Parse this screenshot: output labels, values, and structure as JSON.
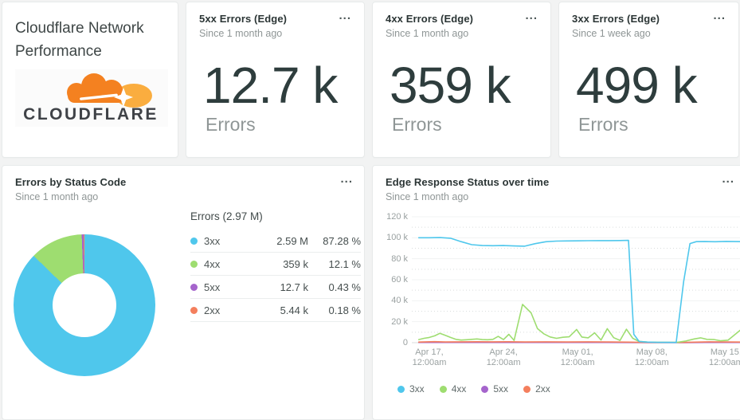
{
  "palette": {
    "c3xx": "#4fc7ec",
    "c4xx": "#9edd70",
    "c5xx": "#a564cc",
    "c2xx": "#f47f5d",
    "brand_orange": "#f48120",
    "brand_orange_light": "#faad3f"
  },
  "title_card": {
    "title": "Cloudflare Network Performance",
    "logo_wordmark": "CLOUDFLARE"
  },
  "menu_label": "...",
  "metric_cards": [
    {
      "title": "5xx Errors (Edge)",
      "subtitle": "Since 1 month ago",
      "value": "12.7 k",
      "unit": "Errors"
    },
    {
      "title": "4xx Errors (Edge)",
      "subtitle": "Since 1 month ago",
      "value": "359 k",
      "unit": "Errors"
    },
    {
      "title": "3xx Errors (Edge)",
      "subtitle": "Since 1 week ago",
      "value": "499 k",
      "unit": "Errors"
    }
  ],
  "donut_card": {
    "title": "Errors by Status Code",
    "subtitle": "Since 1 month ago"
  },
  "timeseries_card": {
    "title": "Edge Response Status over time",
    "subtitle": "Since 1 month ago"
  },
  "chart_data": [
    {
      "type": "pie",
      "title": "Errors by Status Code",
      "legend_title": "Errors (2.97 M)",
      "donut": true,
      "slices": [
        {
          "label": "3xx",
          "value_label": "2.59 M",
          "pct": 87.28,
          "pct_label": "87.28 %",
          "color": "#4fc7ec"
        },
        {
          "label": "4xx",
          "value_label": "359 k",
          "pct": 12.1,
          "pct_label": "12.1 %",
          "color": "#9edd70"
        },
        {
          "label": "5xx",
          "value_label": "12.7 k",
          "pct": 0.43,
          "pct_label": "0.43 %",
          "color": "#a564cc"
        },
        {
          "label": "2xx",
          "value_label": "5.44 k",
          "pct": 0.18,
          "pct_label": "0.18 %",
          "color": "#f47f5d"
        }
      ]
    },
    {
      "type": "line",
      "title": "Edge Response Status over time",
      "unit": "k (thousands of responses)",
      "x_unit": "days since Apr 16, 12:00am",
      "ylim_k": [
        0,
        120
      ],
      "grid": "horizontal, dotted minor every 10k",
      "y_ticks": [
        {
          "value": 120,
          "label": "120 k"
        },
        {
          "value": 100,
          "label": "100 k"
        },
        {
          "value": 80,
          "label": "80 k"
        },
        {
          "value": 60,
          "label": "60 k"
        },
        {
          "value": 40,
          "label": "40 k"
        },
        {
          "value": 20,
          "label": "20 k"
        },
        {
          "value": 0,
          "label": "0"
        }
      ],
      "x_ticks": [
        {
          "day": 1,
          "line1": "Apr 17,",
          "line2": "12:00am"
        },
        {
          "day": 8,
          "line1": "Apr 24,",
          "line2": "12:00am"
        },
        {
          "day": 15,
          "line1": "May 01,",
          "line2": "12:00am"
        },
        {
          "day": 22,
          "line1": "May 08,",
          "line2": "12:00am"
        },
        {
          "day": 29,
          "line1": "May 15,",
          "line2": "12:00am"
        }
      ],
      "legend": [
        {
          "label": "3xx",
          "color": "#4fc7ec"
        },
        {
          "label": "4xx",
          "color": "#9edd70"
        },
        {
          "label": "5xx",
          "color": "#a564cc"
        },
        {
          "label": "2xx",
          "color": "#f47f5d"
        }
      ],
      "series": [
        {
          "name": "5xx",
          "color": "#a564cc",
          "points": [
            [
              0,
              0.2
            ],
            [
              5,
              0.2
            ],
            [
              10,
              0.2
            ],
            [
              15,
              0.2
            ],
            [
              20,
              0.15
            ],
            [
              22,
              0.1
            ],
            [
              25,
              0.1
            ],
            [
              27,
              0.2
            ],
            [
              30.4,
              0.2
            ]
          ]
        },
        {
          "name": "2xx",
          "color": "#f47f5d",
          "points": [
            [
              0,
              0.6
            ],
            [
              1.5,
              1
            ],
            [
              2.5,
              0.7
            ],
            [
              4,
              0.8
            ],
            [
              5.5,
              0.9
            ],
            [
              7,
              0.8
            ],
            [
              8.5,
              0.9
            ],
            [
              10,
              0.7
            ],
            [
              12,
              0.8
            ],
            [
              14,
              0.7
            ],
            [
              16,
              0.8
            ],
            [
              18,
              0.7
            ],
            [
              20,
              0.5
            ],
            [
              21,
              0.3
            ],
            [
              23,
              0.25
            ],
            [
              24.5,
              0.25
            ],
            [
              26,
              0.5
            ],
            [
              27.5,
              0.8
            ],
            [
              29,
              0.7
            ],
            [
              30.4,
              0.6
            ]
          ]
        },
        {
          "name": "4xx",
          "color": "#9edd70",
          "points": [
            [
              0,
              3
            ],
            [
              0.5,
              4.2
            ],
            [
              1,
              5
            ],
            [
              1.5,
              6.5
            ],
            [
              2,
              9
            ],
            [
              2.5,
              7
            ],
            [
              3,
              5
            ],
            [
              3.5,
              3.2
            ],
            [
              4,
              2.5
            ],
            [
              4.5,
              2.8
            ],
            [
              5,
              3.2
            ],
            [
              5.5,
              3.6
            ],
            [
              6,
              3
            ],
            [
              6.5,
              2.8
            ],
            [
              7,
              3.2
            ],
            [
              7.5,
              6
            ],
            [
              8,
              3
            ],
            [
              8.5,
              8
            ],
            [
              9,
              2.2
            ],
            [
              9.8,
              36.5
            ],
            [
              10.6,
              28.5
            ],
            [
              11.2,
              13.5
            ],
            [
              11.8,
              8.5
            ],
            [
              12.4,
              5.5
            ],
            [
              13,
              4.2
            ],
            [
              13.6,
              5.2
            ],
            [
              14.2,
              5.6
            ],
            [
              14.9,
              12.6
            ],
            [
              15.4,
              5.4
            ],
            [
              16,
              4.6
            ],
            [
              16.6,
              9.4
            ],
            [
              17.2,
              2.6
            ],
            [
              17.8,
              13.4
            ],
            [
              18.4,
              4.8
            ],
            [
              19,
              2.2
            ],
            [
              19.6,
              12.8
            ],
            [
              20.2,
              4.2
            ],
            [
              20.8,
              1.2
            ],
            [
              21.6,
              0.6
            ],
            [
              22.6,
              0.4
            ],
            [
              23.6,
              0.3
            ],
            [
              24.4,
              0.3
            ],
            [
              25.2,
              1.6
            ],
            [
              26,
              3.6
            ],
            [
              26.6,
              4.6
            ],
            [
              27.2,
              3.2
            ],
            [
              27.9,
              3
            ],
            [
              28.5,
              1.8
            ],
            [
              29.2,
              2.4
            ],
            [
              30.4,
              12.4
            ]
          ]
        },
        {
          "name": "3xx",
          "color": "#4fc7ec",
          "points": [
            [
              0,
              100
            ],
            [
              1,
              100
            ],
            [
              2,
              100.2
            ],
            [
              3,
              99.6
            ],
            [
              4,
              96.3
            ],
            [
              5,
              93.4
            ],
            [
              6,
              92.6
            ],
            [
              7,
              92.4
            ],
            [
              8,
              92.6
            ],
            [
              9,
              92.2
            ],
            [
              10,
              92
            ],
            [
              11,
              94.4
            ],
            [
              12,
              96.2
            ],
            [
              13,
              96.8
            ],
            [
              14,
              97
            ],
            [
              15,
              97.1
            ],
            [
              16,
              97.2
            ],
            [
              17,
              97.3
            ],
            [
              18,
              97.3
            ],
            [
              19,
              97.4
            ],
            [
              19.8,
              97.5
            ],
            [
              20.3,
              8
            ],
            [
              20.8,
              1.2
            ],
            [
              21.5,
              0.6
            ],
            [
              22.5,
              0.4
            ],
            [
              23.5,
              0.3
            ],
            [
              24.3,
              0.2
            ],
            [
              25,
              58
            ],
            [
              25.6,
              94.5
            ],
            [
              26.2,
              96.3
            ],
            [
              27,
              96.4
            ],
            [
              28,
              96.2
            ],
            [
              29,
              96.5
            ],
            [
              30.4,
              96.3
            ]
          ]
        }
      ]
    }
  ]
}
